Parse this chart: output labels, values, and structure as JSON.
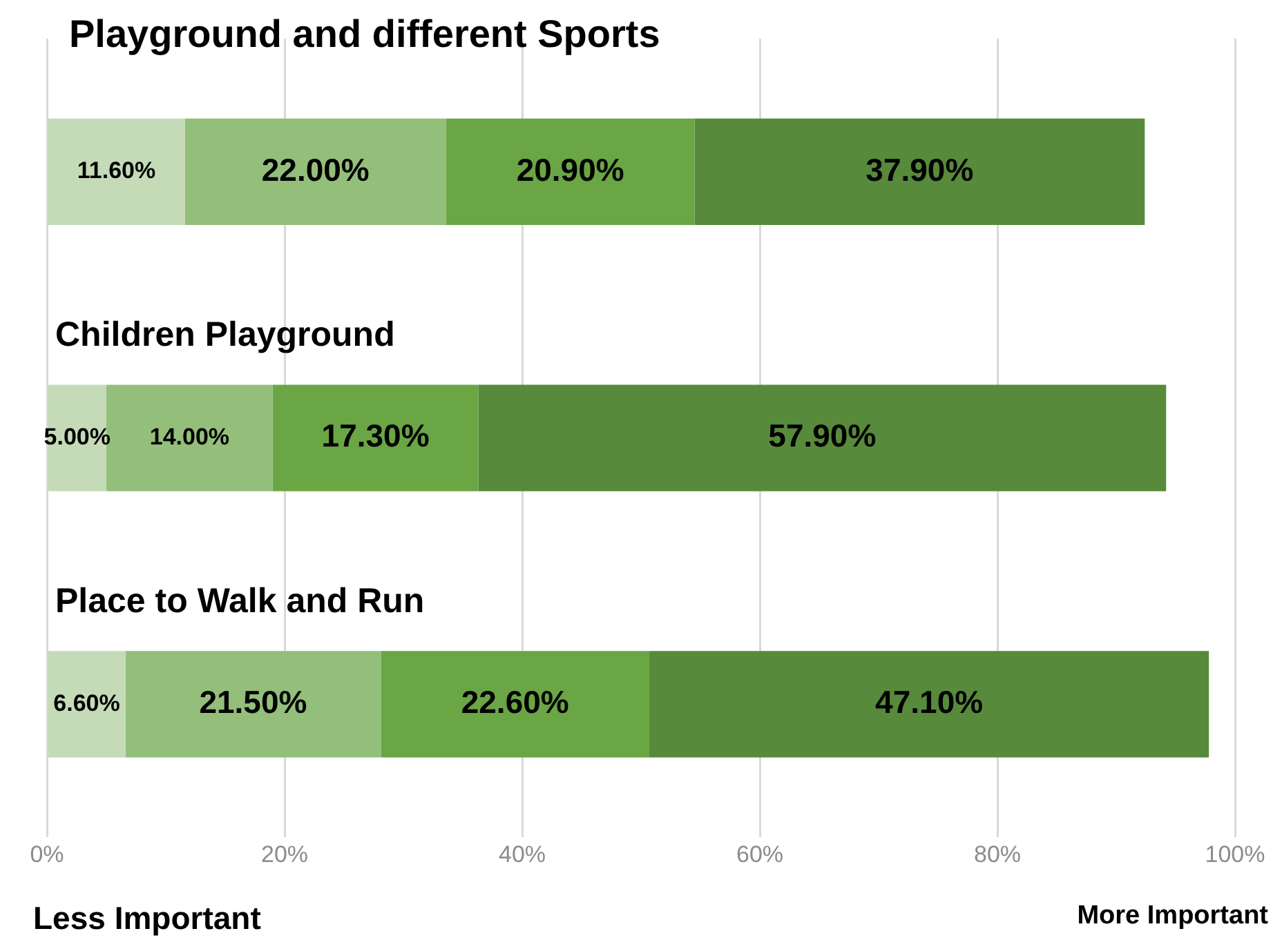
{
  "chart_data": {
    "type": "bar",
    "orientation": "horizontal",
    "stacked": true,
    "categories": [
      "Playground and different Sports",
      "Children Playground",
      "Place to Walk and Run"
    ],
    "series": [
      {
        "color": "#c5dbb8",
        "values": [
          11.6,
          5.0,
          6.6
        ],
        "value_labels": [
          "11.60%",
          "5.00%",
          "6.60%"
        ]
      },
      {
        "color": "#93bf7b",
        "values": [
          22.0,
          14.0,
          21.5
        ],
        "value_labels": [
          "22.00%",
          "14.00%",
          "21.50%"
        ]
      },
      {
        "color": "#6aa644",
        "values": [
          20.9,
          17.3,
          22.6
        ],
        "value_labels": [
          "20.90%",
          "17.30%",
          "22.60%"
        ]
      },
      {
        "color": "#578a3a",
        "values": [
          37.9,
          57.9,
          47.1
        ],
        "value_labels": [
          "37.90%",
          "57.90%",
          "47.10%"
        ]
      }
    ],
    "xlim": [
      0,
      100
    ],
    "xticks": [
      {
        "value": 0,
        "label": "0%"
      },
      {
        "value": 20,
        "label": "20%"
      },
      {
        "value": 40,
        "label": "40%"
      },
      {
        "value": 60,
        "label": "60%"
      },
      {
        "value": 80,
        "label": "80%"
      },
      {
        "value": 100,
        "label": "100%"
      }
    ],
    "grid": "x",
    "legend": false,
    "annotations": [
      "Less Important",
      "More Important"
    ]
  }
}
